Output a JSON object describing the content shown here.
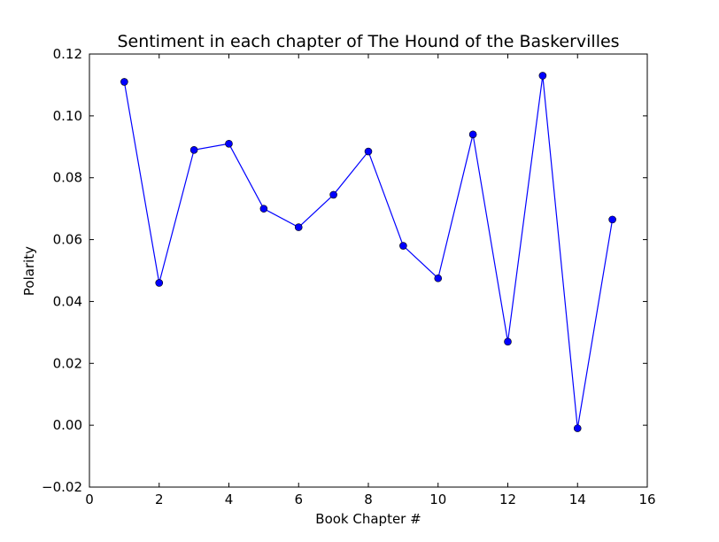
{
  "chart_data": {
    "type": "line",
    "title": "Sentiment in each chapter of The Hound of the Baskervilles",
    "xlabel": "Book Chapter #",
    "ylabel": "Polarity",
    "xlim": [
      0,
      16
    ],
    "ylim": [
      -0.02,
      0.12
    ],
    "xticks": [
      0,
      2,
      4,
      6,
      8,
      10,
      12,
      14,
      16
    ],
    "xtick_labels": [
      "0",
      "2",
      "4",
      "6",
      "8",
      "10",
      "12",
      "14",
      "16"
    ],
    "yticks": [
      -0.02,
      0.0,
      0.02,
      0.04,
      0.06,
      0.08,
      0.1,
      0.12
    ],
    "ytick_labels": [
      "−0.02",
      "0.00",
      "0.02",
      "0.04",
      "0.06",
      "0.08",
      "0.10",
      "0.12"
    ],
    "grid": false,
    "legend": "none",
    "x": [
      1,
      2,
      3,
      4,
      5,
      6,
      7,
      8,
      9,
      10,
      11,
      12,
      13,
      14,
      15
    ],
    "series": [
      {
        "values": [
          0.111,
          0.046,
          0.089,
          0.091,
          0.07,
          0.064,
          0.0745,
          0.0885,
          0.058,
          0.0475,
          0.094,
          0.027,
          0.113,
          -0.001,
          0.0665
        ],
        "color": "#0000ff",
        "marker": "circle"
      }
    ]
  }
}
